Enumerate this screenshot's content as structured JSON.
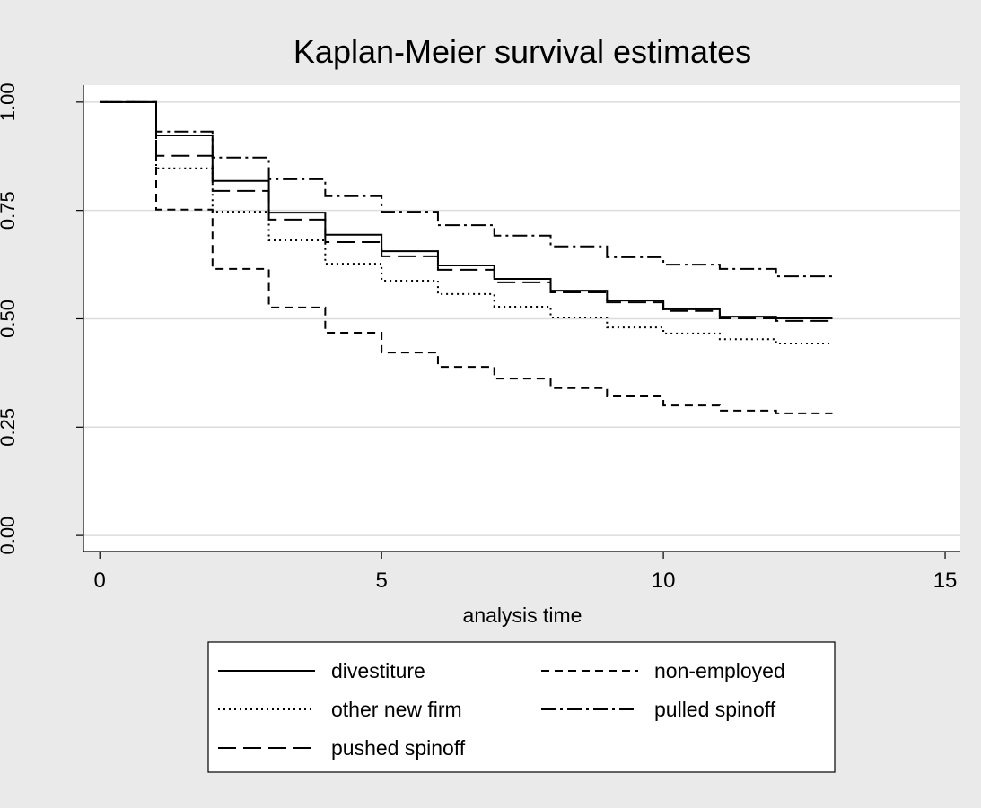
{
  "chart_data": {
    "type": "step-line",
    "title": "Kaplan-Meier survival estimates",
    "x_label": "analysis time",
    "xlim": [
      -0.29,
      15.27
    ],
    "xticks": [
      0,
      5,
      10,
      15
    ],
    "ylim": [
      -0.037,
      1.039
    ],
    "yticks": [
      {
        "value": 0,
        "label": "0.00"
      },
      {
        "value": 0.25,
        "label": "0.25"
      },
      {
        "value": 0.5,
        "label": "0.50"
      },
      {
        "value": 0.75,
        "label": "0.75"
      },
      {
        "value": 1,
        "label": "1.00"
      }
    ],
    "grid": true,
    "x": [
      0,
      1,
      2,
      3,
      4,
      5,
      6,
      7,
      8,
      9,
      10,
      11,
      12,
      13
    ],
    "series": [
      {
        "name": "divestiture",
        "color": "#000000",
        "dash": "none",
        "values": [
          1.0,
          0.923,
          0.818,
          0.745,
          0.694,
          0.656,
          0.623,
          0.592,
          0.565,
          0.542,
          0.522,
          0.505,
          0.501,
          0.501
        ]
      },
      {
        "name": "non-employed",
        "color": "#000000",
        "dash": "9,6",
        "values": [
          1.0,
          0.752,
          0.615,
          0.526,
          0.468,
          0.422,
          0.389,
          0.362,
          0.34,
          0.321,
          0.3,
          0.288,
          0.282,
          0.282
        ]
      },
      {
        "name": "other new firm",
        "color": "#000000",
        "dash": "2,4",
        "values": [
          1.0,
          0.847,
          0.747,
          0.681,
          0.627,
          0.588,
          0.557,
          0.528,
          0.503,
          0.48,
          0.466,
          0.453,
          0.443,
          0.443
        ]
      },
      {
        "name": "pulled spinoff",
        "color": "#000000",
        "dash": "16,5,3,5",
        "values": [
          1.0,
          0.932,
          0.872,
          0.822,
          0.783,
          0.747,
          0.716,
          0.692,
          0.667,
          0.642,
          0.625,
          0.615,
          0.598,
          0.598
        ]
      },
      {
        "name": "pushed spinoff",
        "color": "#000000",
        "dash": "20,8",
        "values": [
          1.0,
          0.876,
          0.795,
          0.729,
          0.677,
          0.644,
          0.613,
          0.584,
          0.561,
          0.538,
          0.518,
          0.501,
          0.495,
          0.495
        ]
      }
    ]
  }
}
